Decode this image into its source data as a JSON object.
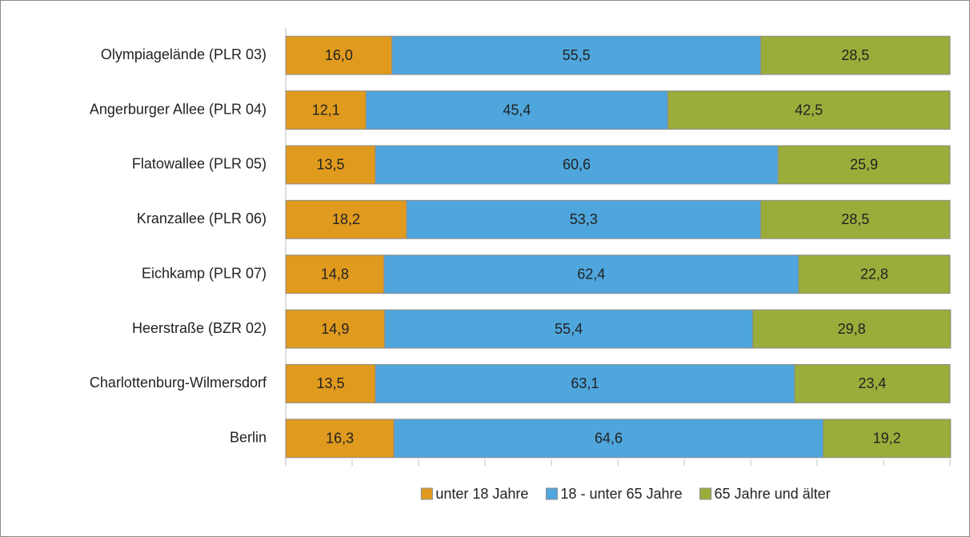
{
  "chart_data": {
    "type": "stacked-bar-horizontal",
    "categories": [
      "Olympiagelände (PLR 03)",
      "Angerburger Allee (PLR 04)",
      "Flatowallee (PLR 05)",
      "Kranzallee (PLR 06)",
      "Eichkamp (PLR 07)",
      "Heerstraße (BZR 02)",
      "Charlottenburg-Wilmersdorf",
      "Berlin"
    ],
    "series": [
      {
        "name": "unter 18 Jahre",
        "color": "#e09a1e",
        "values": [
          16.0,
          12.1,
          13.5,
          18.2,
          14.8,
          14.9,
          13.5,
          16.3
        ],
        "value_labels": [
          "16,0",
          "12,1",
          "13,5",
          "18,2",
          "14,8",
          "14,9",
          "13,5",
          "16,3"
        ]
      },
      {
        "name": "18 - unter 65 Jahre",
        "color": "#4ea6dc",
        "values": [
          55.5,
          45.4,
          60.6,
          53.3,
          62.4,
          55.4,
          63.1,
          64.6
        ],
        "value_labels": [
          "55,5",
          "45,4",
          "60,6",
          "53,3",
          "62,4",
          "55,4",
          "63,1",
          "64,6"
        ]
      },
      {
        "name": "65 Jahre und älter",
        "color": "#9aad3b",
        "values": [
          28.5,
          42.5,
          25.9,
          28.5,
          22.8,
          29.8,
          23.4,
          19.2
        ],
        "value_labels": [
          "28,5",
          "42,5",
          "25,9",
          "28,5",
          "22,8",
          "29,8",
          "23,4",
          "19,2"
        ]
      }
    ],
    "xlim": [
      0,
      100
    ],
    "xticks": [
      0,
      10,
      20,
      30,
      40,
      50,
      60,
      70,
      80,
      90,
      100
    ],
    "legend": "bottom"
  }
}
